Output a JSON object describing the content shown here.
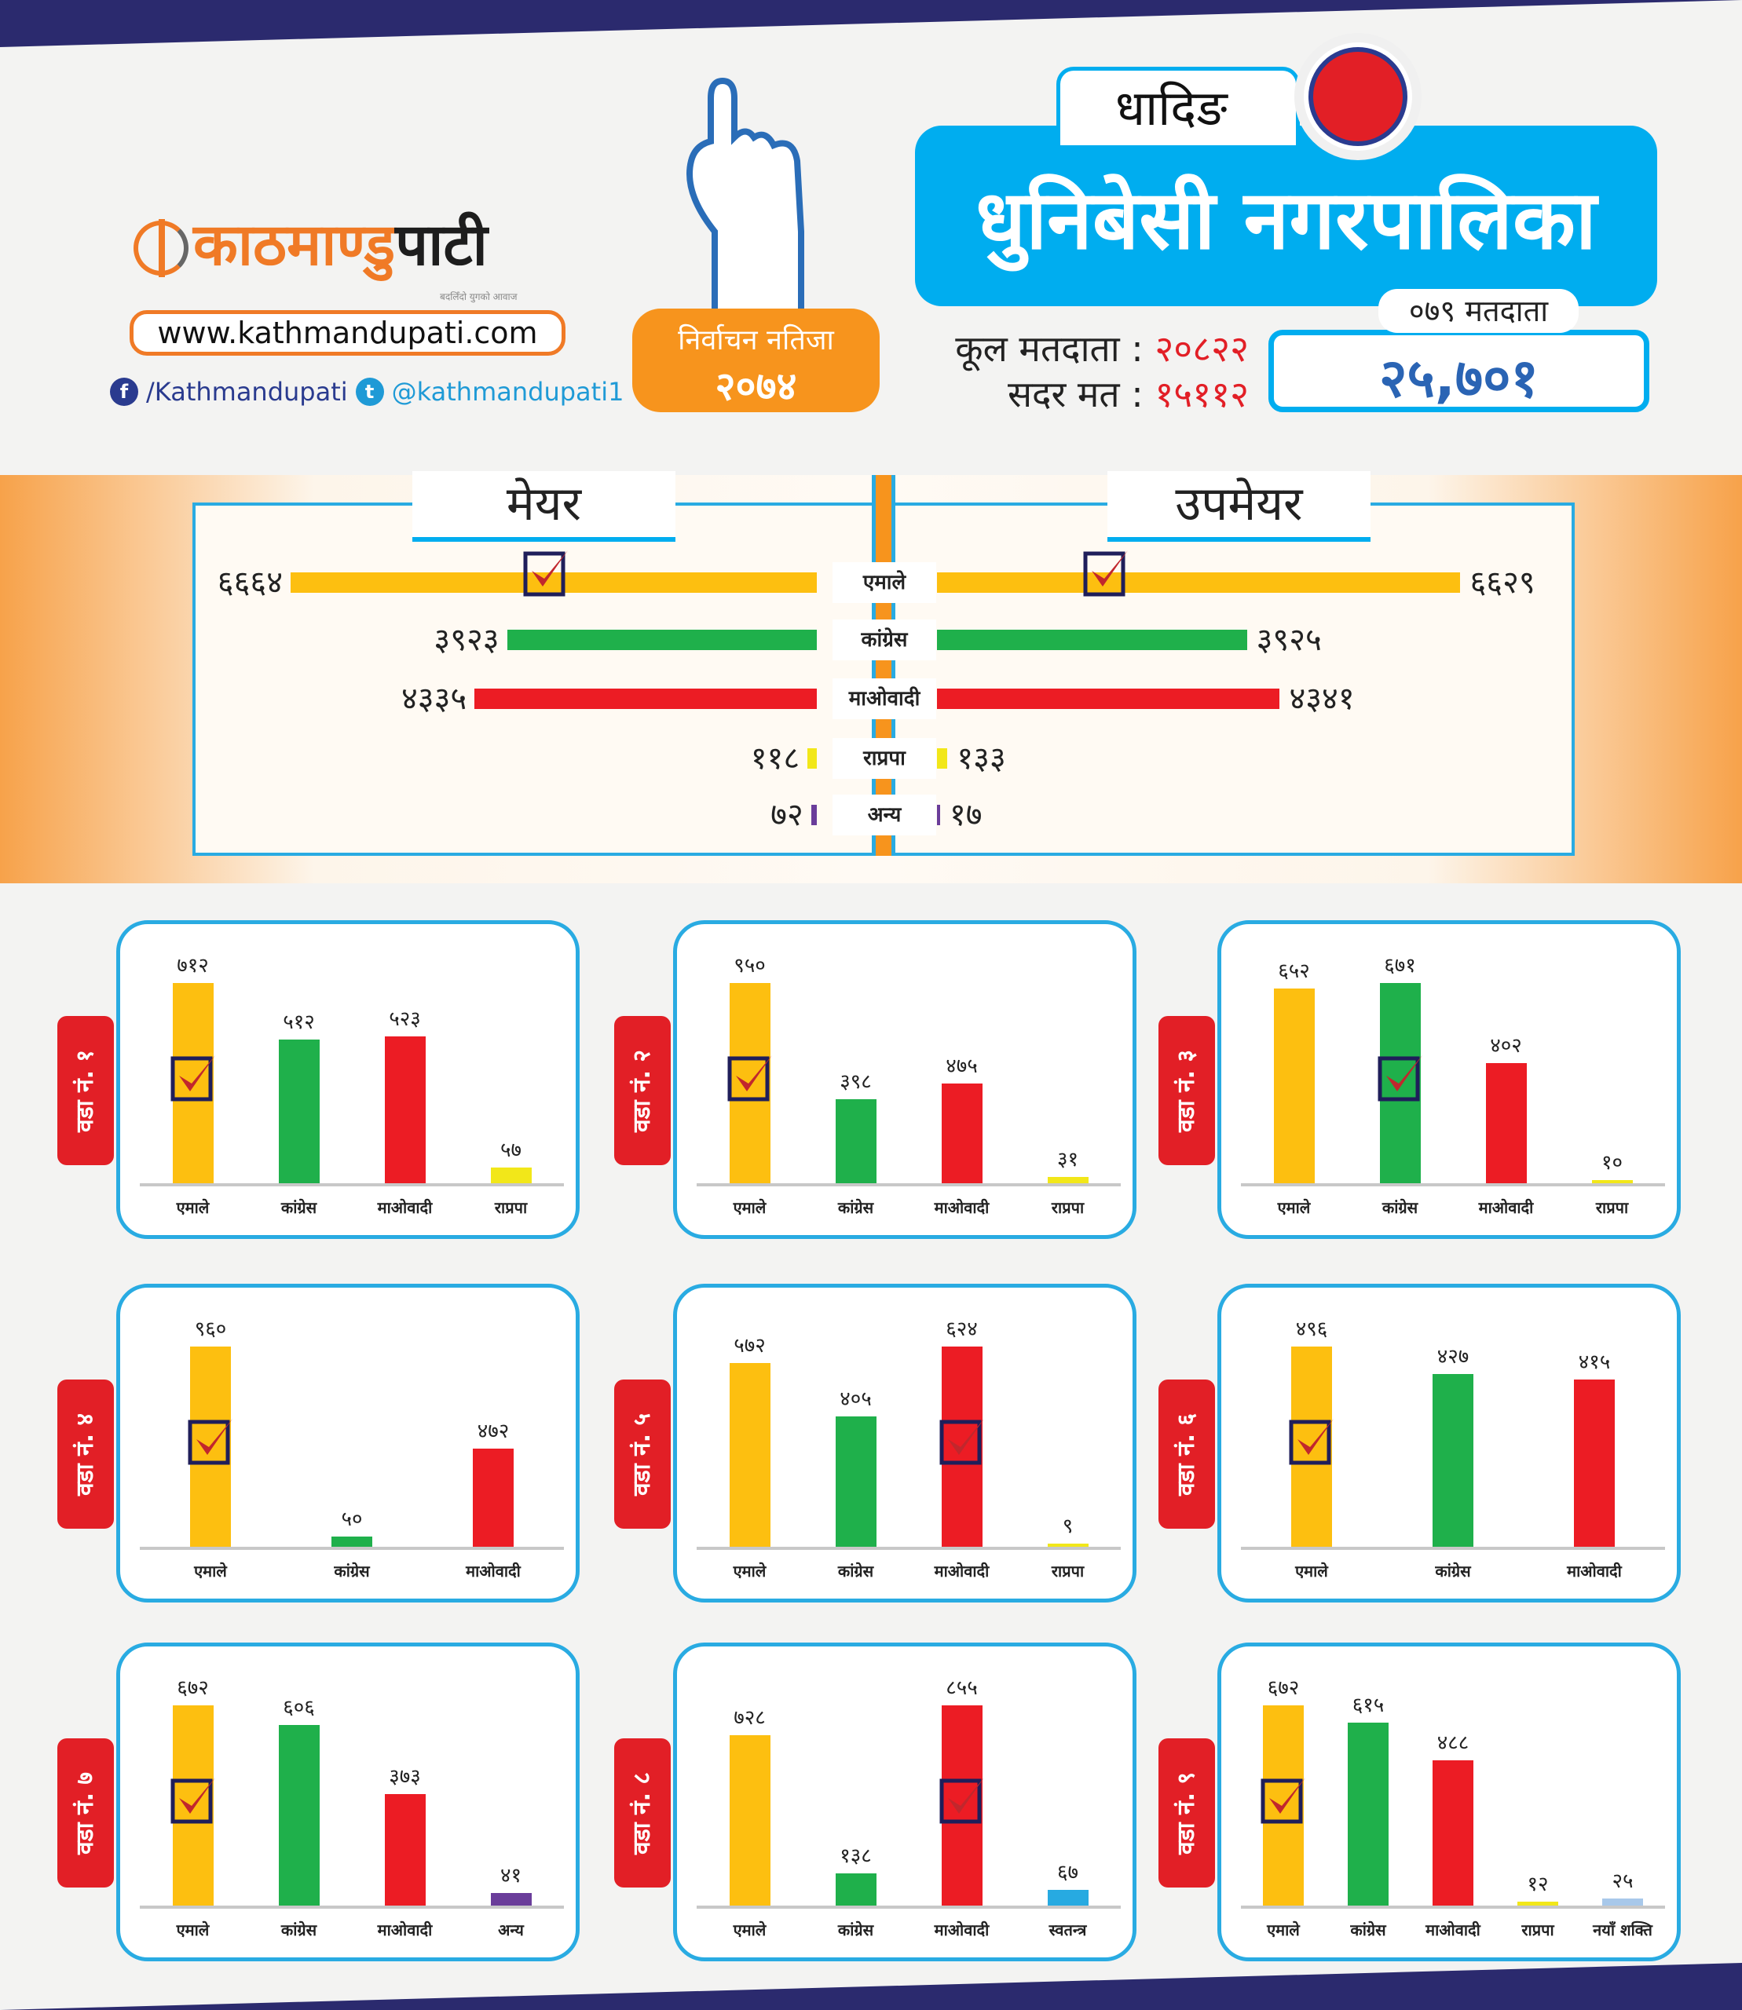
{
  "brand": {
    "logo_text_orange": "काठमाण्डु",
    "logo_text_black": "पाटी",
    "tagline": "बदलिँदो युगको आवाज",
    "url": "www.kathmandupati.com",
    "facebook": "/Kathmandupati",
    "twitter": "@kathmandupati1"
  },
  "badge": {
    "line1": "निर्वाचन नतिजा",
    "line2": "२०७४"
  },
  "header": {
    "district": "धादिङ",
    "municipality": "धुनिबेसी नगरपालिका"
  },
  "stats": {
    "total_label": "कूल मतदाता :",
    "total_value": "२०८२२",
    "valid_label": "सदर मत :",
    "valid_value": "१५११२"
  },
  "voters_079": {
    "label": "०७९ मतदाता",
    "value": "२५,७०१"
  },
  "colors": {
    "एमाले": "#fdbf10",
    "कांग्रेस": "#1fb04b",
    "माओवादी": "#ec1c24",
    "राप्रपा": "#f2e719",
    "अन्य": "#6a3d9a",
    "स्वतन्त्र": "#27aae1",
    "नयाँ शक्ति": "#a8c8ea"
  },
  "chart_data": [
    {
      "type": "bar",
      "title": "मेयर",
      "orientation": "horizontal-left",
      "categories": [
        "एमाले",
        "कांग्रेस",
        "माओवादी",
        "राप्रपा",
        "अन्य"
      ],
      "values": [
        6664,
        3923,
        4335,
        118,
        72
      ],
      "labels": [
        "६६६४",
        "३९२३",
        "४३३५",
        "११८",
        "७२"
      ],
      "winner": "एमाले"
    },
    {
      "type": "bar",
      "title": "उपमेयर",
      "orientation": "horizontal-right",
      "categories": [
        "एमाले",
        "कांग्रेस",
        "माओवादी",
        "राप्रपा",
        "अन्य"
      ],
      "values": [
        6629,
        3925,
        4341,
        133,
        17
      ],
      "labels": [
        "६६२९",
        "३९२५",
        "४३४१",
        "१३३",
        "१७"
      ],
      "winner": "एमाले"
    },
    {
      "type": "bar",
      "title": "वडा नं. १",
      "categories": [
        "एमाले",
        "कांग्रेस",
        "माओवादी",
        "राप्रपा"
      ],
      "values": [
        712,
        512,
        523,
        57
      ],
      "labels": [
        "७१२",
        "५१२",
        "५२३",
        "५७"
      ],
      "winner": "एमाले"
    },
    {
      "type": "bar",
      "title": "वडा नं. २",
      "categories": [
        "एमाले",
        "कांग्रेस",
        "माओवादी",
        "राप्रपा"
      ],
      "values": [
        950,
        398,
        475,
        31
      ],
      "labels": [
        "९५०",
        "३९८",
        "४७५",
        "३१"
      ],
      "winner": "एमाले"
    },
    {
      "type": "bar",
      "title": "वडा नं. ३",
      "categories": [
        "एमाले",
        "कांग्रेस",
        "माओवादी",
        "राप्रपा"
      ],
      "values": [
        652,
        671,
        402,
        10
      ],
      "labels": [
        "६५२",
        "६७१",
        "४०२",
        "१०"
      ],
      "winner": "कांग्रेस"
    },
    {
      "type": "bar",
      "title": "वडा नं. ४",
      "categories": [
        "एमाले",
        "कांग्रेस",
        "माओवादी"
      ],
      "values": [
        960,
        50,
        472
      ],
      "labels": [
        "९६०",
        "५०",
        "४७२"
      ],
      "winner": "एमाले"
    },
    {
      "type": "bar",
      "title": "वडा नं. ५",
      "categories": [
        "एमाले",
        "कांग्रेस",
        "माओवादी",
        "राप्रपा"
      ],
      "values": [
        572,
        405,
        624,
        9
      ],
      "labels": [
        "५७२",
        "४०५",
        "६२४",
        "९"
      ],
      "winner": "माओवादी"
    },
    {
      "type": "bar",
      "title": "वडा नं. ६",
      "categories": [
        "एमाले",
        "कांग्रेस",
        "माओवादी"
      ],
      "values": [
        496,
        427,
        415
      ],
      "labels": [
        "४९६",
        "४२७",
        "४१५"
      ],
      "winner": "एमाले"
    },
    {
      "type": "bar",
      "title": "वडा नं. ७",
      "categories": [
        "एमाले",
        "कांग्रेस",
        "माओवादी",
        "अन्य"
      ],
      "values": [
        672,
        606,
        373,
        41
      ],
      "labels": [
        "६७२",
        "६०६",
        "३७३",
        "४१"
      ],
      "winner": "एमाले"
    },
    {
      "type": "bar",
      "title": "वडा नं. ८",
      "categories": [
        "एमाले",
        "कांग्रेस",
        "माओवादी",
        "स्वतन्त्र"
      ],
      "values": [
        728,
        138,
        855,
        67
      ],
      "labels": [
        "७२८",
        "१३८",
        "८५५",
        "६७"
      ],
      "winner": "माओवादी"
    },
    {
      "type": "bar",
      "title": "वडा नं. ९",
      "categories": [
        "एमाले",
        "कांग्रेस",
        "माओवादी",
        "राप्रपा",
        "नयाँ शक्ति"
      ],
      "values": [
        672,
        615,
        488,
        12,
        25
      ],
      "labels": [
        "६७२",
        "६१५",
        "४८८",
        "१२",
        "२५"
      ],
      "winner": "एमाले"
    }
  ]
}
